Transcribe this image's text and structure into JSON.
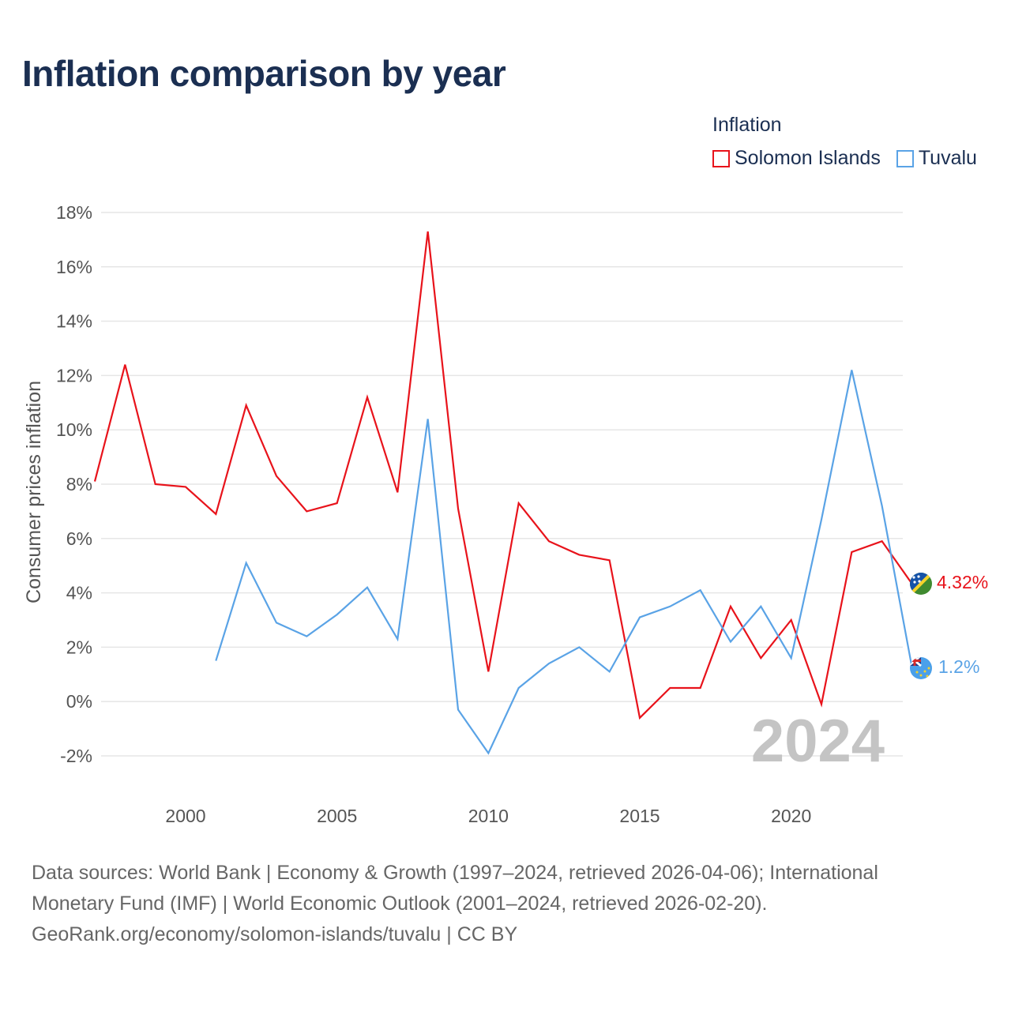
{
  "title": "Inflation comparison by year",
  "legend": {
    "title": "Inflation",
    "items": [
      {
        "label": "Solomon Islands",
        "color": "#e8131b"
      },
      {
        "label": "Tuvalu",
        "color": "#5aa3e6"
      }
    ]
  },
  "year_watermark": "2024",
  "source": {
    "line1": "Data sources: World Bank | Economy & Growth (1997–2024, retrieved 2026-04-06); International Monetary Fund (IMF) | World Economic Outlook (2001–2024, retrieved 2026-02-20).",
    "line2": "GeoRank.org/economy/solomon-islands/tuvalu | CC BY"
  },
  "chart_data": {
    "type": "line",
    "title": "Inflation comparison by year",
    "xlabel": "",
    "ylabel": "Consumer prices inflation",
    "xlim": [
      1997,
      2024
    ],
    "ylim": [
      -2,
      18
    ],
    "x_ticks": [
      2000,
      2005,
      2010,
      2015,
      2020
    ],
    "x_tick_labels": [
      "2000",
      "2005",
      "2010",
      "2015",
      "2020"
    ],
    "y_ticks": [
      -2,
      0,
      2,
      4,
      6,
      8,
      10,
      12,
      14,
      16,
      18
    ],
    "y_tick_labels": [
      "-2%",
      "0%",
      "2%",
      "4%",
      "6%",
      "8%",
      "10%",
      "12%",
      "14%",
      "16%",
      "18%"
    ],
    "grid": true,
    "legend_position": "top-right",
    "series": [
      {
        "name": "Solomon Islands",
        "color": "#e8131b",
        "end_label": "4.32%",
        "end_value": 4.32,
        "x": [
          1997,
          1998,
          1999,
          2000,
          2001,
          2002,
          2003,
          2004,
          2005,
          2006,
          2007,
          2008,
          2009,
          2010,
          2011,
          2012,
          2013,
          2014,
          2015,
          2016,
          2017,
          2018,
          2019,
          2020,
          2021,
          2022,
          2023,
          2024
        ],
        "values": [
          8.1,
          12.4,
          8.0,
          7.9,
          6.9,
          10.9,
          8.3,
          7.0,
          7.3,
          11.2,
          7.7,
          17.3,
          7.1,
          1.1,
          7.3,
          5.9,
          5.4,
          5.2,
          -0.6,
          0.5,
          0.5,
          3.5,
          1.6,
          3.0,
          -0.1,
          5.5,
          5.9,
          4.32
        ]
      },
      {
        "name": "Tuvalu",
        "color": "#5aa3e6",
        "end_label": "1.2%",
        "end_value": 1.2,
        "x": [
          2001,
          2002,
          2003,
          2004,
          2005,
          2006,
          2007,
          2008,
          2009,
          2010,
          2011,
          2012,
          2013,
          2014,
          2015,
          2016,
          2017,
          2018,
          2019,
          2020,
          2021,
          2022,
          2023,
          2024
        ],
        "values": [
          1.5,
          5.1,
          2.9,
          2.4,
          3.2,
          4.2,
          2.3,
          10.4,
          -0.3,
          -1.9,
          0.5,
          1.4,
          2.0,
          1.1,
          3.1,
          3.5,
          4.1,
          2.2,
          3.5,
          1.6,
          6.7,
          12.2,
          7.2,
          1.2
        ]
      }
    ]
  }
}
